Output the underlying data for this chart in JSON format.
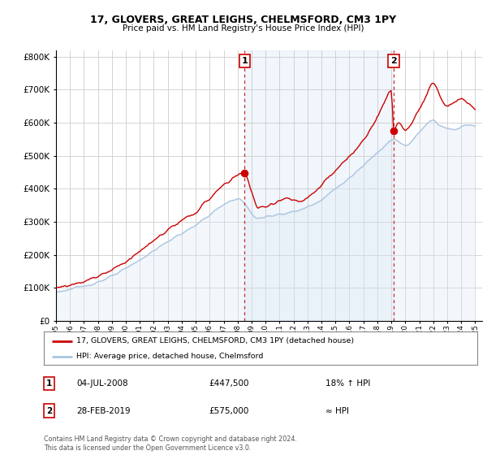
{
  "title": "17, GLOVERS, GREAT LEIGHS, CHELMSFORD, CM3 1PY",
  "subtitle": "Price paid vs. HM Land Registry's House Price Index (HPI)",
  "legend_line1": "17, GLOVERS, GREAT LEIGHS, CHELMSFORD, CM3 1PY (detached house)",
  "legend_line2": "HPI: Average price, detached house, Chelmsford",
  "footnote": "Contains HM Land Registry data © Crown copyright and database right 2024.\nThis data is licensed under the Open Government Licence v3.0.",
  "sale1_date": "04-JUL-2008",
  "sale1_price": 447500,
  "sale1_label": "18% ↑ HPI",
  "sale1_x": 2008.5,
  "sale2_date": "28-FEB-2019",
  "sale2_price": 575000,
  "sale2_label": "≈ HPI",
  "sale2_x": 2019.17,
  "ylim_min": 0,
  "ylim_max": 820000,
  "hpi_color": "#aac4e0",
  "hpi_fill_color": "#ddeaf5",
  "price_color": "#cc0000",
  "sale_dot_color": "#cc0000",
  "dashed_line_color": "#cc0000",
  "background_color": "#ffffff",
  "grid_color": "#cccccc",
  "annotation_box_color": "#cc0000",
  "shade_between_color": "#d8eaf8"
}
